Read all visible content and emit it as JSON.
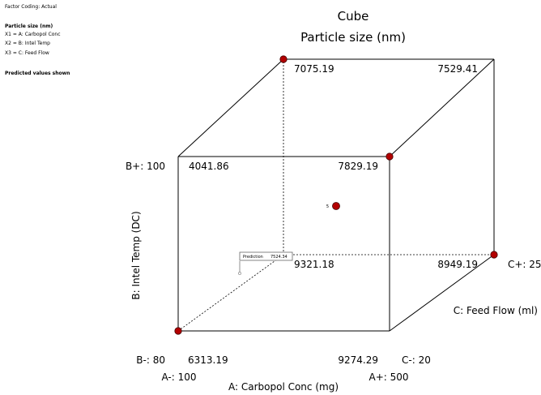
{
  "info_panel": {
    "coding": "Factor Coding: Actual",
    "response_title": "Particle size (nm)",
    "x1": "X1 = A: Carbopol Conc",
    "x2": "X2 = B: Intel Temp",
    "x3": "X3 = C: Feed Flow",
    "predicted": "Predicted values shown"
  },
  "colors": {
    "point": "#b30000",
    "edge": "#000000"
  },
  "chart_data": {
    "type": "cube",
    "title": "Cube",
    "subtitle": "Particle size (nm)",
    "axes": {
      "A": {
        "label": "A: Carbopol Conc (mg)",
        "low_label": "A-: 100",
        "high_label": "A+: 500",
        "low": 100,
        "high": 500
      },
      "B": {
        "label": "B: Intel Temp (DC)",
        "low_label": "B-: 80",
        "high_label": "B+: 100",
        "low": 80,
        "high": 100
      },
      "C": {
        "label": "C: Feed Flow (ml)",
        "low_label": "C-: 20",
        "high_label": "C+: 25",
        "low": 20,
        "high": 25
      }
    },
    "corners": [
      {
        "A": "-",
        "B": "-",
        "C": "-",
        "value": "6313.19",
        "point": true
      },
      {
        "A": "+",
        "B": "-",
        "C": "-",
        "value": "9274.29",
        "point": false
      },
      {
        "A": "-",
        "B": "+",
        "C": "-",
        "value": "4041.86",
        "point": false
      },
      {
        "A": "+",
        "B": "+",
        "C": "-",
        "value": "7829.19",
        "point": true
      },
      {
        "A": "-",
        "B": "-",
        "C": "+",
        "value": "9321.18",
        "point": false
      },
      {
        "A": "+",
        "B": "-",
        "C": "+",
        "value": "8949.19",
        "point": true
      },
      {
        "A": "-",
        "B": "+",
        "C": "+",
        "value": "7075.19",
        "point": true
      },
      {
        "A": "+",
        "B": "+",
        "C": "+",
        "value": "7529.41",
        "point": false
      }
    ],
    "center_point": {
      "label": "5"
    },
    "prediction": {
      "label": "Prediction",
      "value": "7524.34"
    }
  }
}
